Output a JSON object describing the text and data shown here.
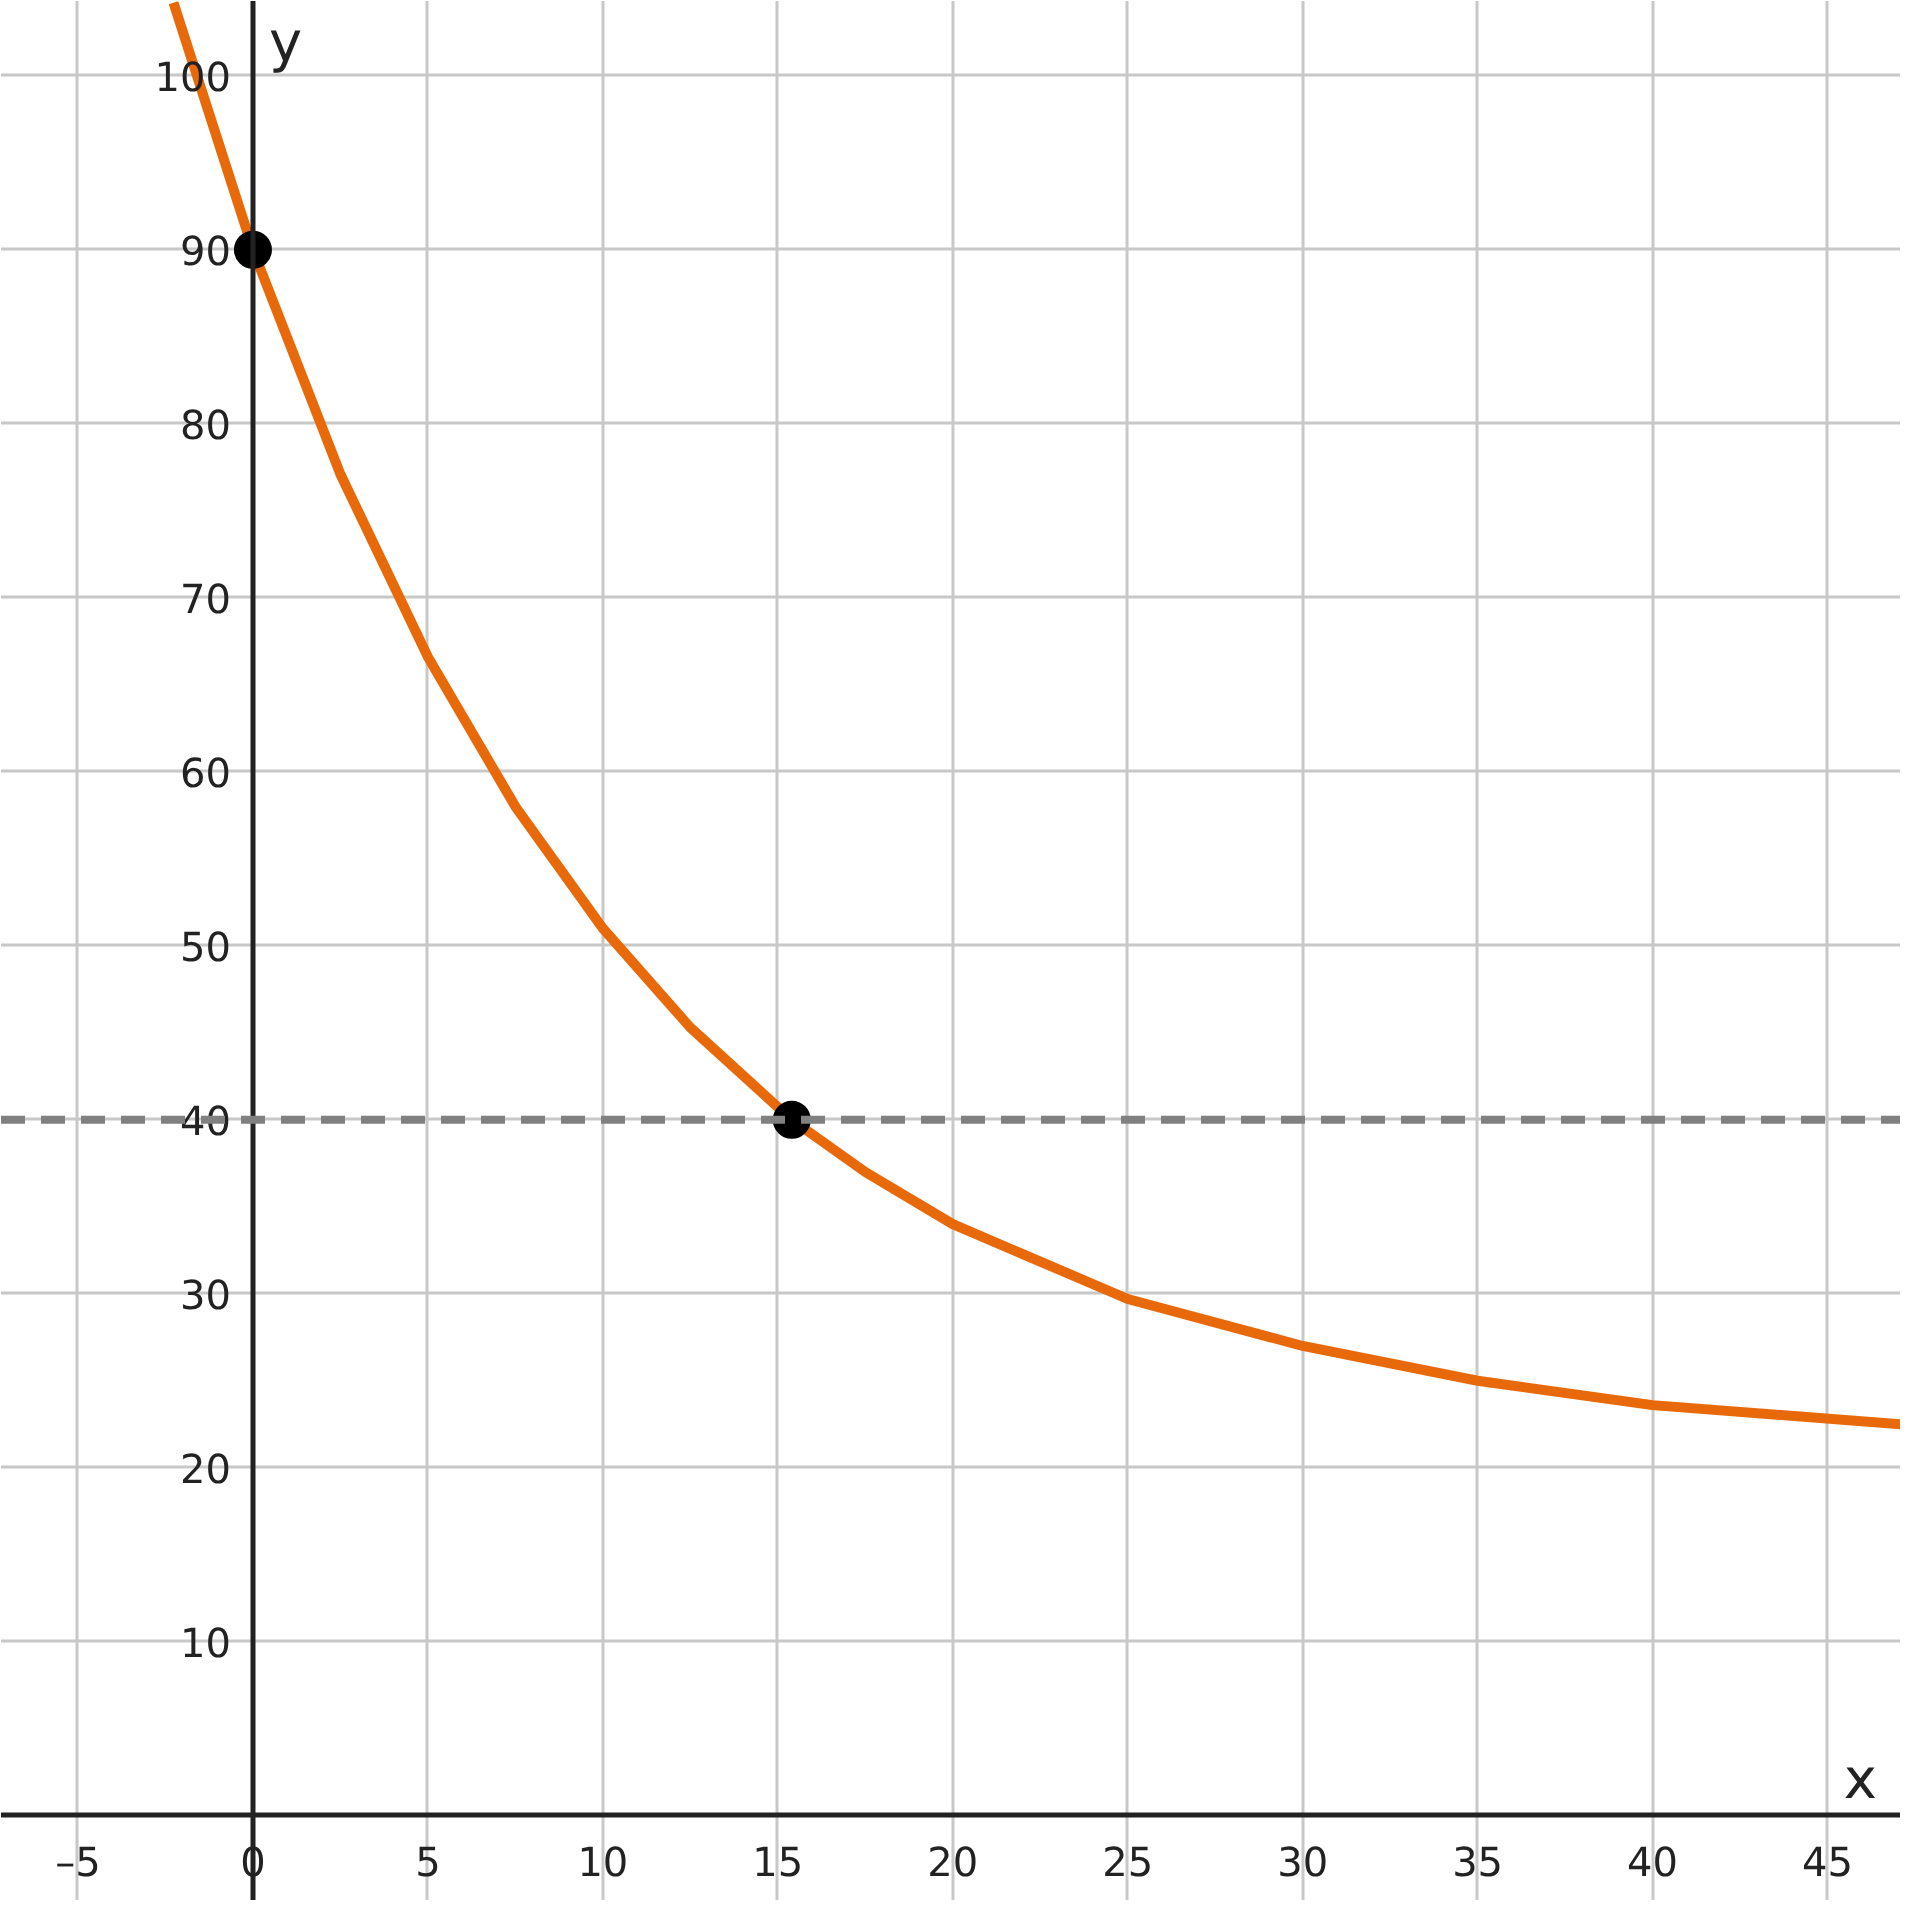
{
  "chart_data": {
    "type": "line",
    "xlabel": "x",
    "ylabel": "y",
    "xlim": [
      -7.2,
      47.1
    ],
    "ylim": [
      -4.9,
      104.3
    ],
    "xticks": [
      {
        "value": -5,
        "label": "–5"
      },
      0,
      5,
      10,
      15,
      20,
      25,
      30,
      35,
      40,
      45
    ],
    "yticks": [
      10,
      20,
      30,
      40,
      50,
      60,
      70,
      80,
      90,
      100
    ],
    "grid": true,
    "series": [
      {
        "color": "#e8690a",
        "x": [
          -2.27,
          0,
          2.5,
          5,
          7.5,
          10,
          12.5,
          15.4,
          17.5,
          20,
          25,
          30,
          35,
          40,
          47.1
        ],
        "values": [
          104.2,
          90,
          77.1,
          66.6,
          58.0,
          51.0,
          45.3,
          40,
          37.0,
          34.0,
          29.7,
          27.0,
          25.0,
          23.6,
          22.5
        ]
      },
      {
        "type": "scatter",
        "color": "#000000",
        "marker": "circle",
        "x": [
          0,
          15.4
        ],
        "values": [
          90,
          40
        ]
      }
    ],
    "ref_lines": [
      {
        "axis": "y",
        "value": 40,
        "color": "#808080",
        "line_style": "dashed"
      }
    ]
  }
}
